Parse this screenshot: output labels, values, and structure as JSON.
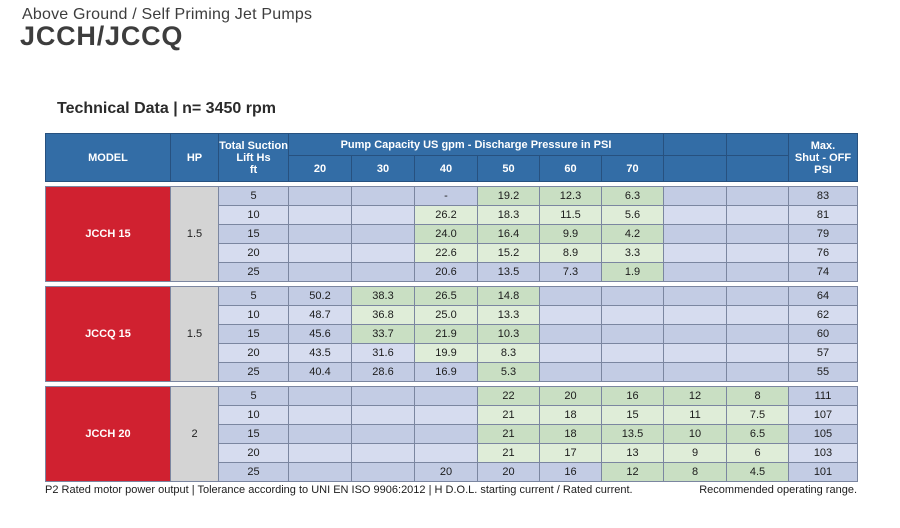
{
  "page": {
    "kicker": "Above Ground / Self Priming Jet Pumps",
    "title": "JCCH/JCCQ",
    "section_title": "Technical Data |  n= 3450 rpm"
  },
  "colors": {
    "header_bg": "#336da6",
    "header_border": "#27517f",
    "body_border": "#7b86a0",
    "model_red": "#d02130",
    "hp_grey": "#d4d4d4",
    "row_blue_dark": "#c3cce4",
    "row_blue_light": "#d6dcef",
    "row_green_dark": "#c9dfc3",
    "row_green_light": "#dfedd8"
  },
  "table": {
    "headers": {
      "model": "MODEL",
      "hp": "HP",
      "lift": "Total Suction\nLift Hs\nft",
      "capacity_span": "Pump Capacity US gpm - Discharge Pressure in PSI",
      "pressures": [
        "20",
        "30",
        "40",
        "50",
        "60",
        "70",
        "",
        ""
      ],
      "max": "Max.\nShut - OFF\nPSI"
    },
    "sections": [
      {
        "model": "JCCH 15",
        "hp": "1.5",
        "rows": [
          {
            "lift": "5",
            "values": [
              "",
              "",
              "-",
              "19.2",
              "12.3",
              "6.3",
              "",
              "",
              "83"
            ],
            "green": [
              0,
              0,
              0,
              1,
              1,
              1,
              0,
              0,
              0
            ]
          },
          {
            "lift": "10",
            "values": [
              "",
              "",
              "26.2",
              "18.3",
              "11.5",
              "5.6",
              "",
              "",
              "81"
            ],
            "green": [
              0,
              0,
              1,
              1,
              1,
              1,
              0,
              0,
              0
            ]
          },
          {
            "lift": "15",
            "values": [
              "",
              "",
              "24.0",
              "16.4",
              "9.9",
              "4.2",
              "",
              "",
              "79"
            ],
            "green": [
              0,
              0,
              1,
              1,
              1,
              1,
              0,
              0,
              0
            ]
          },
          {
            "lift": "20",
            "values": [
              "",
              "",
              "22.6",
              "15.2",
              "8.9",
              "3.3",
              "",
              "",
              "76"
            ],
            "green": [
              0,
              0,
              1,
              1,
              1,
              1,
              0,
              0,
              0
            ]
          },
          {
            "lift": "25",
            "values": [
              "",
              "",
              "20.6",
              "13.5",
              "7.3",
              "1.9",
              "",
              "",
              "74"
            ],
            "green": [
              0,
              0,
              0,
              0,
              0,
              1,
              0,
              0,
              0
            ]
          }
        ]
      },
      {
        "model": "JCCQ 15",
        "hp": "1.5",
        "rows": [
          {
            "lift": "5",
            "values": [
              "50.2",
              "38.3",
              "26.5",
              "14.8",
              "",
              "",
              "",
              "",
              "64"
            ],
            "green": [
              0,
              1,
              1,
              1,
              0,
              0,
              0,
              0,
              0
            ]
          },
          {
            "lift": "10",
            "values": [
              "48.7",
              "36.8",
              "25.0",
              "13.3",
              "",
              "",
              "",
              "",
              "62"
            ],
            "green": [
              0,
              1,
              1,
              1,
              0,
              0,
              0,
              0,
              0
            ]
          },
          {
            "lift": "15",
            "values": [
              "45.6",
              "33.7",
              "21.9",
              "10.3",
              "",
              "",
              "",
              "",
              "60"
            ],
            "green": [
              0,
              1,
              1,
              1,
              0,
              0,
              0,
              0,
              0
            ]
          },
          {
            "lift": "20",
            "values": [
              "43.5",
              "31.6",
              "19.9",
              "8.3",
              "",
              "",
              "",
              "",
              "57"
            ],
            "green": [
              0,
              0,
              1,
              1,
              0,
              0,
              0,
              0,
              0
            ]
          },
          {
            "lift": "25",
            "values": [
              "40.4",
              "28.6",
              "16.9",
              "5.3",
              "",
              "",
              "",
              "",
              "55"
            ],
            "green": [
              0,
              0,
              0,
              1,
              0,
              0,
              0,
              0,
              0
            ]
          }
        ]
      },
      {
        "model": "JCCH 20",
        "hp": "2",
        "rows": [
          {
            "lift": "5",
            "values": [
              "",
              "",
              "",
              "22",
              "20",
              "16",
              "12",
              "8",
              "111"
            ],
            "green": [
              0,
              0,
              0,
              1,
              1,
              1,
              1,
              1,
              0
            ]
          },
          {
            "lift": "10",
            "values": [
              "",
              "",
              "",
              "21",
              "18",
              "15",
              "11",
              "7.5",
              "107"
            ],
            "green": [
              0,
              0,
              0,
              1,
              1,
              1,
              1,
              1,
              0
            ]
          },
          {
            "lift": "15",
            "values": [
              "",
              "",
              "",
              "21",
              "18",
              "13.5",
              "10",
              "6.5",
              "105"
            ],
            "green": [
              0,
              0,
              0,
              1,
              1,
              1,
              1,
              1,
              0
            ]
          },
          {
            "lift": "20",
            "values": [
              "",
              "",
              "",
              "21",
              "17",
              "13",
              "9",
              "6",
              "103"
            ],
            "green": [
              0,
              0,
              0,
              1,
              1,
              1,
              1,
              1,
              0
            ]
          },
          {
            "lift": "25",
            "values": [
              "",
              "",
              "20",
              "20",
              "16",
              "12",
              "8",
              "4.5",
              "101"
            ],
            "green": [
              0,
              0,
              0,
              0,
              0,
              1,
              1,
              1,
              0
            ]
          }
        ]
      }
    ]
  },
  "footer": {
    "left": "P2  Rated motor power output  |  Tolerance according to UNI EN ISO 9906:2012  |  H  D.O.L. starting current / Rated current.",
    "right": "Recommended operating range."
  }
}
